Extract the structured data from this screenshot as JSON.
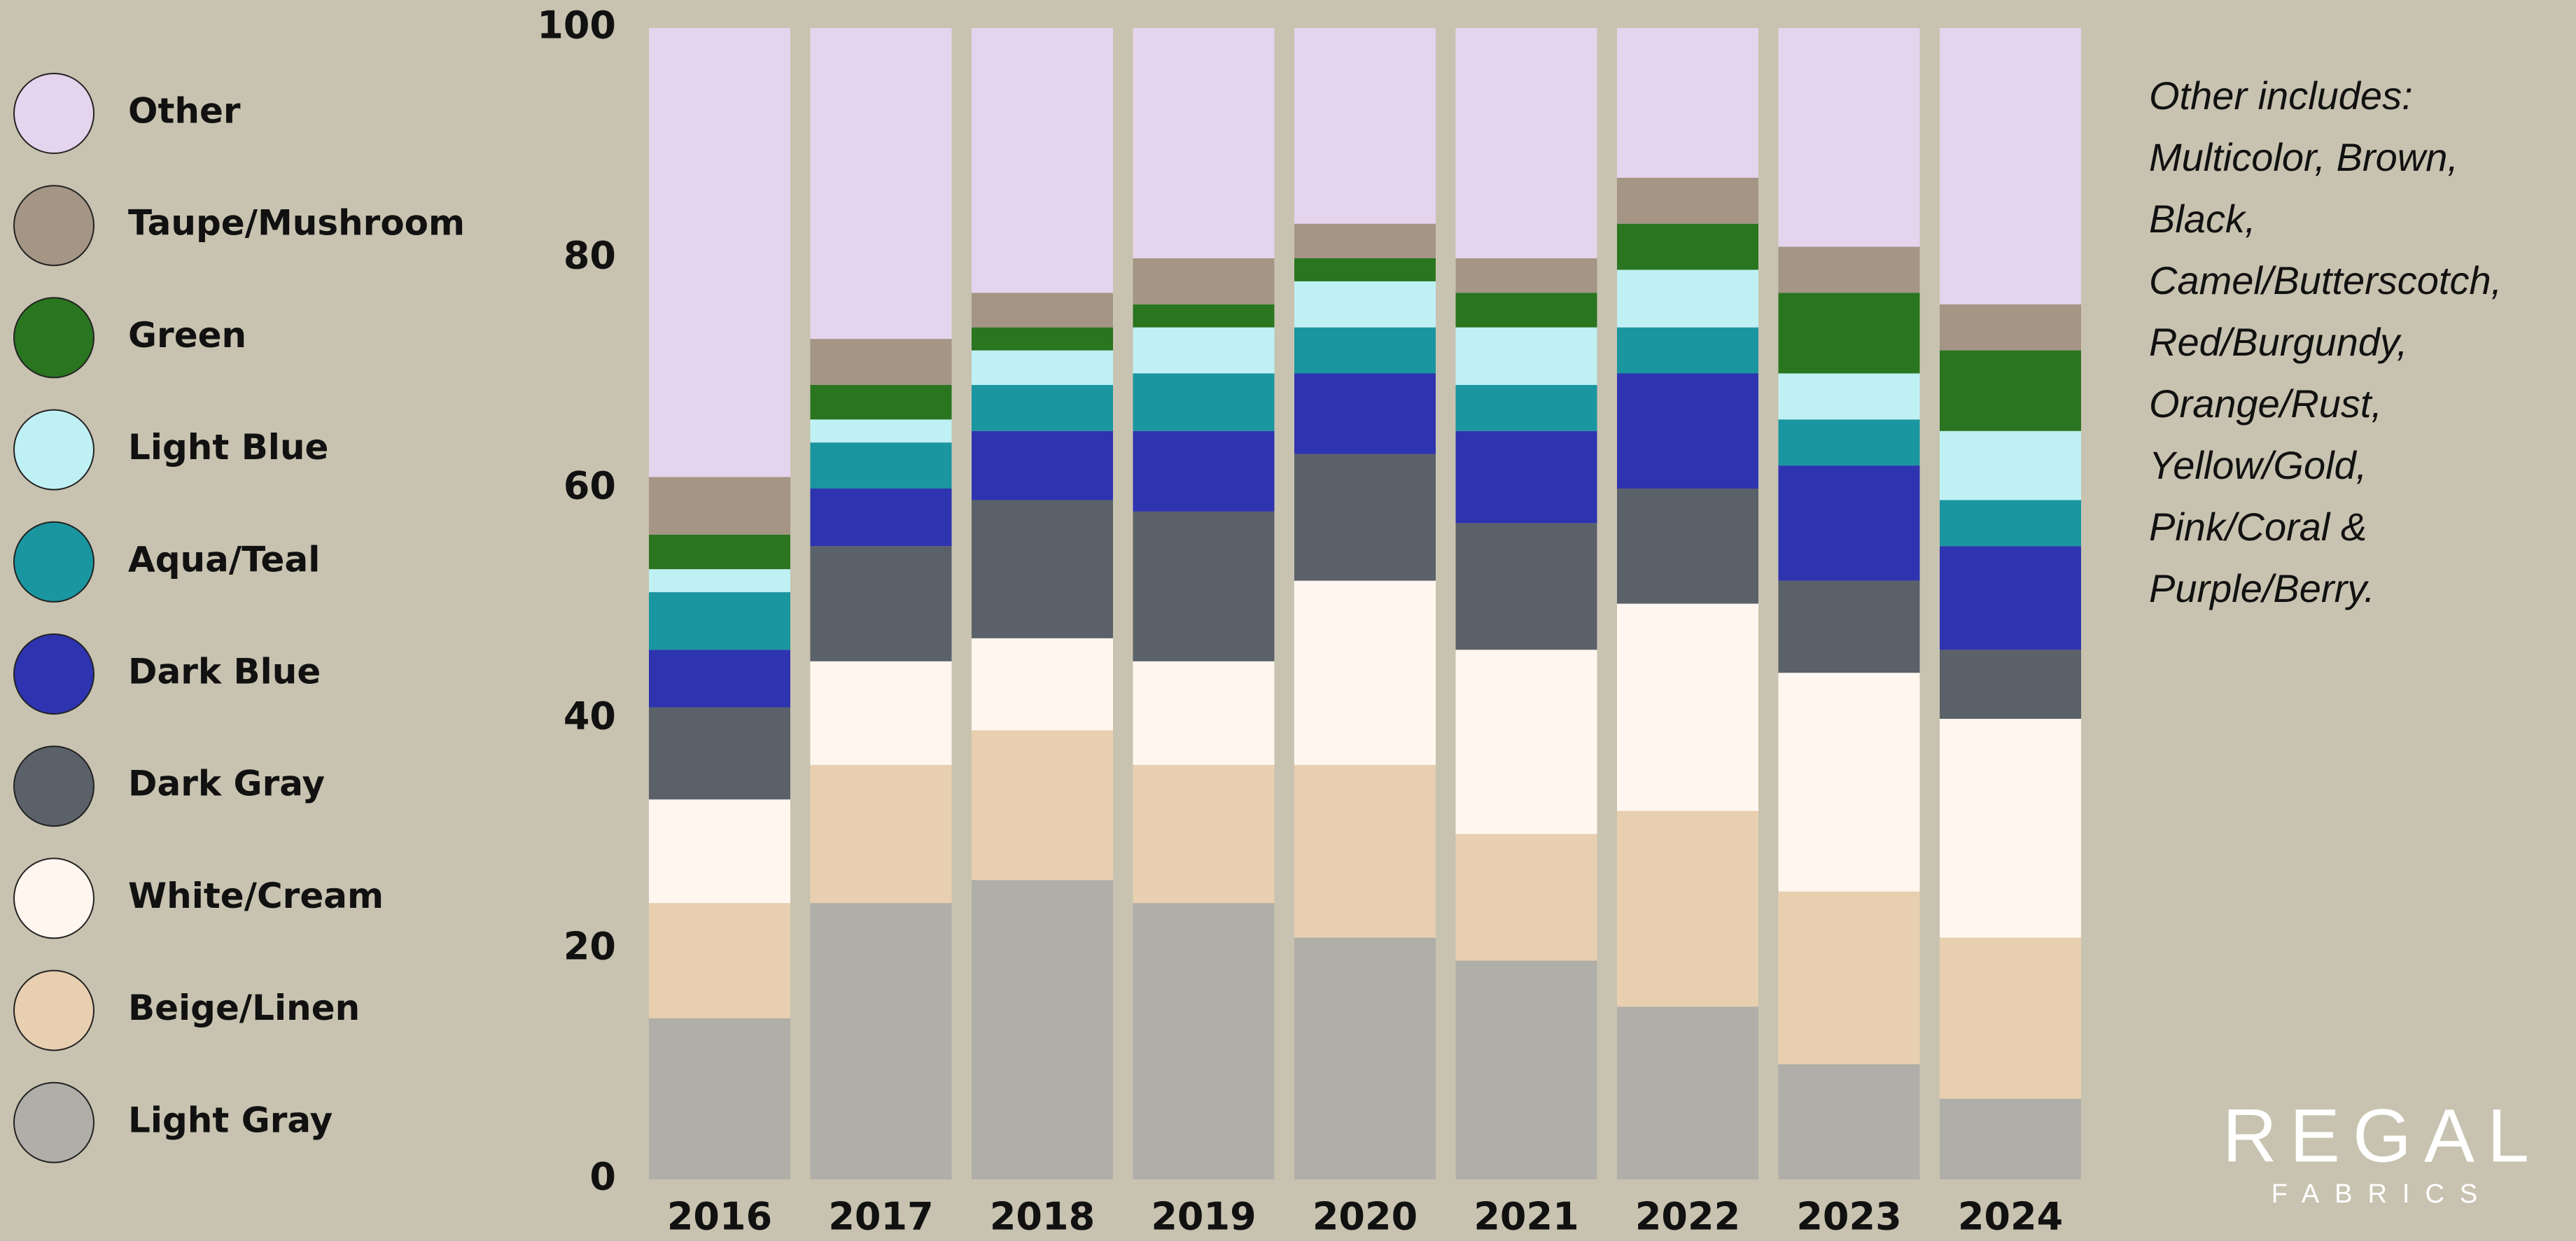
{
  "chart_data": {
    "type": "stacked_bar",
    "categories": [
      "2016",
      "2017",
      "2018",
      "2019",
      "2020",
      "2021",
      "2022",
      "2023",
      "2024"
    ],
    "series": [
      {
        "name": "Light Gray",
        "color": "#b0aea8",
        "values": [
          14,
          24,
          26,
          24,
          21,
          19,
          15,
          10,
          7
        ]
      },
      {
        "name": "Beige/Linen",
        "color": "#e8cfb0",
        "values": [
          10,
          12,
          13,
          12,
          15,
          11,
          17,
          15,
          14
        ]
      },
      {
        "name": "White/Cream",
        "color": "#fff7ef",
        "values": [
          9,
          9,
          8,
          9,
          16,
          16,
          18,
          19,
          19
        ]
      },
      {
        "name": "Dark Gray",
        "color": "#5b6169",
        "values": [
          8,
          10,
          12,
          13,
          11,
          11,
          10,
          8,
          6
        ]
      },
      {
        "name": "Dark Blue",
        "color": "#2e33b0",
        "values": [
          5,
          5,
          6,
          7,
          7,
          8,
          10,
          10,
          9
        ]
      },
      {
        "name": "Aqua/Teal",
        "color": "#1a96a0",
        "values": [
          5,
          4,
          4,
          5,
          4,
          4,
          4,
          4,
          4
        ]
      },
      {
        "name": "Light Blue",
        "color": "#bff0f4",
        "values": [
          2,
          2,
          3,
          4,
          4,
          5,
          5,
          4,
          6
        ]
      },
      {
        "name": "Green",
        "color": "#2a7520",
        "values": [
          3,
          3,
          2,
          2,
          2,
          3,
          4,
          7,
          7
        ]
      },
      {
        "name": "Taupe/Mushroom",
        "color": "#a49585",
        "values": [
          5,
          4,
          3,
          4,
          3,
          3,
          4,
          4,
          4
        ]
      },
      {
        "name": "Other",
        "color": "#e5d4ee",
        "values": [
          39,
          27,
          23,
          20,
          17,
          20,
          13,
          19,
          24
        ]
      }
    ],
    "ylim": [
      0,
      100
    ],
    "yticks": [
      0,
      20,
      40,
      60,
      80,
      100
    ],
    "grid": false,
    "annotation_lines": [
      "Other includes:",
      "Multicolor, Brown,",
      "Black,",
      "Camel/Butterscotch,",
      "Red/Burgundy,",
      "Orange/Rust,",
      "Yellow/Gold,",
      "Pink/Coral &",
      "Purple/Berry."
    ]
  },
  "logo": {
    "name": "REGAL",
    "tagline": "FABRICS"
  }
}
